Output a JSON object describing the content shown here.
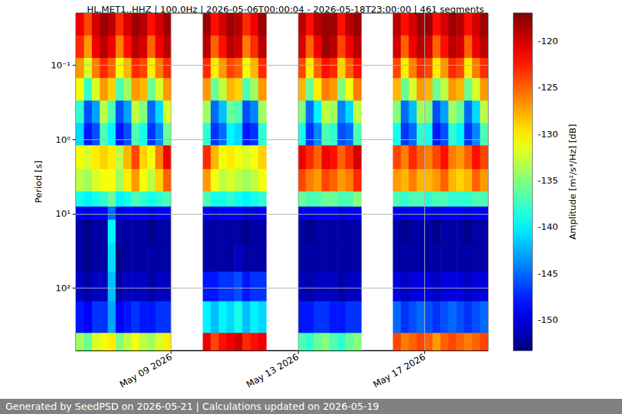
{
  "chart_data": {
    "type": "heatmap",
    "title": "HL.MET1..HHZ | 100.0Hz | 2026-05-06T00:00:04 - 2026-05-18T23:00:00 | 461 segments",
    "footer": "Generated by SeedPSD on 2026-05-21 | Calculations updated on 2026-05-19",
    "y_label": "Period [s]",
    "colorbar_label": "Amplitude [m²/s⁴/Hz] [dB]",
    "log": "y",
    "grid": true,
    "xlim": [
      "2026-05-06",
      "2026-05-19"
    ],
    "xticks": [
      {
        "value": "2026-05-09",
        "label": "May 09 2026"
      },
      {
        "value": "2026-05-13",
        "label": "May 13 2026"
      },
      {
        "value": "2026-05-17",
        "label": "May 17 2026"
      }
    ],
    "ylim": [
      0.02,
      690
    ],
    "yticks": [
      {
        "value": 0.1,
        "label": "10⁻¹"
      },
      {
        "value": 1,
        "label": "10⁰"
      },
      {
        "value": 10,
        "label": "10¹"
      },
      {
        "value": 100,
        "label": "10²"
      }
    ],
    "period_bins": [
      0.02,
      0.04,
      0.08,
      0.15,
      0.3,
      0.6,
      1.2,
      2.5,
      5,
      8,
      12,
      25,
      60,
      150,
      400,
      690
    ],
    "color_range": [
      -153.3,
      -117
    ],
    "color_ticks": [
      -150,
      -145,
      -140,
      -135,
      -130,
      -125,
      -120
    ],
    "segments": [
      {
        "start": "2026-05-06",
        "end": "2026-05-09",
        "cells": [
          [
            -121,
            -123,
            -127,
            -131,
            -138,
            -141,
            -131,
            -133,
            -139,
            -149,
            -152,
            -152,
            -151,
            -148,
            -134
          ],
          [
            -124,
            -127,
            -132,
            -138,
            -146,
            -148,
            -132,
            -134,
            -140,
            -150,
            -153,
            -153,
            -152,
            -149,
            -136
          ],
          [
            -120,
            -121,
            -126,
            -132,
            -143,
            -146,
            -130,
            -132,
            -139,
            -149,
            -152,
            -152,
            -151,
            -147,
            -132
          ],
          [
            -118,
            -119,
            -123,
            -127,
            -133,
            -137,
            -129,
            -131,
            -138,
            -149,
            -152,
            -152,
            -151,
            -147,
            -131
          ],
          [
            -119,
            -121,
            -125,
            -129,
            -137,
            -140,
            -130,
            -131,
            -136,
            -145,
            -140,
            -141,
            -142,
            -143,
            -130
          ],
          [
            -123,
            -126,
            -131,
            -137,
            -146,
            -148,
            -133,
            -134,
            -140,
            -150,
            -152,
            -153,
            -152,
            -149,
            -135
          ],
          [
            -120,
            -122,
            -128,
            -134,
            -143,
            -146,
            -128,
            -130,
            -139,
            -149,
            -152,
            -152,
            -151,
            -148,
            -133
          ],
          [
            -118,
            -119,
            -123,
            -127,
            -133,
            -137,
            -124,
            -127,
            -137,
            -149,
            -152,
            -152,
            -151,
            -147,
            -131
          ],
          [
            -119,
            -120,
            -124,
            -128,
            -135,
            -139,
            -129,
            -131,
            -138,
            -149,
            -152,
            -152,
            -151,
            -148,
            -133
          ],
          [
            -122,
            -125,
            -130,
            -136,
            -145,
            -147,
            -131,
            -133,
            -139,
            -150,
            -153,
            -152,
            -152,
            -148,
            -134
          ],
          [
            -120,
            -121,
            -126,
            -132,
            -141,
            -144,
            -126,
            -129,
            -138,
            -149,
            -152,
            -152,
            -151,
            -147,
            -132
          ],
          [
            -118,
            -119,
            -123,
            -127,
            -132,
            -136,
            -121,
            -125,
            -137,
            -149,
            -152,
            -152,
            -151,
            -147,
            -130
          ]
        ]
      },
      {
        "start": "2026-05-10",
        "end": "2026-05-12",
        "cells": [
          [
            -118,
            -119,
            -123,
            -127,
            -134,
            -138,
            -123,
            -127,
            -137,
            -149,
            -152,
            -152,
            -148,
            -140,
            -121
          ],
          [
            -122,
            -125,
            -130,
            -136,
            -145,
            -147,
            -128,
            -131,
            -139,
            -150,
            -152,
            -152,
            -148,
            -142,
            -124
          ],
          [
            -120,
            -122,
            -127,
            -133,
            -142,
            -145,
            -131,
            -133,
            -139,
            -149,
            -152,
            -152,
            -147,
            -140,
            -122
          ],
          [
            -118,
            -119,
            -124,
            -128,
            -136,
            -140,
            -130,
            -132,
            -138,
            -149,
            -152,
            -152,
            -147,
            -141,
            -121
          ],
          [
            -119,
            -120,
            -125,
            -129,
            -137,
            -141,
            -131,
            -133,
            -139,
            -149,
            -152,
            -151,
            -146,
            -139,
            -120
          ],
          [
            -123,
            -126,
            -131,
            -137,
            -146,
            -148,
            -132,
            -134,
            -140,
            -150,
            -153,
            -152,
            -148,
            -142,
            -123
          ],
          [
            -121,
            -123,
            -128,
            -134,
            -144,
            -147,
            -131,
            -133,
            -139,
            -150,
            -152,
            -152,
            -147,
            -140,
            -122
          ],
          [
            -118,
            -119,
            -123,
            -127,
            -134,
            -138,
            -129,
            -131,
            -138,
            -149,
            -152,
            -152,
            -147,
            -141,
            -121
          ]
        ]
      },
      {
        "start": "2026-05-13",
        "end": "2026-05-15",
        "cells": [
          [
            -119,
            -120,
            -124,
            -128,
            -135,
            -139,
            -121,
            -124,
            -136,
            -149,
            -152,
            -152,
            -151,
            -148,
            -137
          ],
          [
            -122,
            -125,
            -130,
            -136,
            -145,
            -147,
            -123,
            -126,
            -137,
            -150,
            -153,
            -152,
            -152,
            -148,
            -138
          ],
          [
            -119,
            -121,
            -125,
            -130,
            -140,
            -144,
            -125,
            -127,
            -137,
            -149,
            -152,
            -152,
            -151,
            -147,
            -136
          ],
          [
            -118,
            -118,
            -122,
            -126,
            -133,
            -137,
            -121,
            -124,
            -136,
            -149,
            -152,
            -152,
            -151,
            -147,
            -135
          ],
          [
            -118,
            -119,
            -123,
            -127,
            -134,
            -138,
            -122,
            -125,
            -136,
            -149,
            -152,
            -152,
            -151,
            -148,
            -137
          ],
          [
            -122,
            -124,
            -129,
            -135,
            -144,
            -146,
            -125,
            -127,
            -137,
            -150,
            -152,
            -152,
            -152,
            -148,
            -138
          ],
          [
            -119,
            -121,
            -125,
            -131,
            -141,
            -145,
            -123,
            -126,
            -137,
            -149,
            -152,
            -152,
            -151,
            -147,
            -136
          ],
          [
            -118,
            -119,
            -122,
            -126,
            -133,
            -137,
            -120,
            -123,
            -135,
            -149,
            -152,
            -152,
            -151,
            -147,
            -135
          ]
        ]
      },
      {
        "start": "2026-05-16",
        "end": "2026-05-19",
        "cells": [
          [
            -119,
            -120,
            -124,
            -128,
            -135,
            -139,
            -124,
            -127,
            -137,
            -149,
            -152,
            -152,
            -150,
            -145,
            -124
          ],
          [
            -122,
            -125,
            -130,
            -136,
            -145,
            -147,
            -126,
            -128,
            -138,
            -150,
            -153,
            -152,
            -151,
            -147,
            -126
          ],
          [
            -120,
            -121,
            -126,
            -132,
            -142,
            -145,
            -123,
            -126,
            -137,
            -149,
            -152,
            -152,
            -150,
            -146,
            -125
          ],
          [
            -118,
            -119,
            -123,
            -127,
            -134,
            -138,
            -125,
            -128,
            -137,
            -149,
            -152,
            -152,
            -150,
            -145,
            -124
          ],
          [
            -118,
            -120,
            -124,
            -128,
            -135,
            -139,
            -126,
            -128,
            -138,
            -149,
            -152,
            -152,
            -150,
            -146,
            -125
          ],
          [
            -122,
            -125,
            -130,
            -136,
            -146,
            -148,
            -124,
            -127,
            -137,
            -150,
            -153,
            -152,
            -151,
            -147,
            -127
          ],
          [
            -120,
            -122,
            -127,
            -133,
            -143,
            -146,
            -122,
            -125,
            -137,
            -149,
            -152,
            -152,
            -150,
            -146,
            -125
          ],
          [
            -118,
            -119,
            -123,
            -127,
            -134,
            -138,
            -126,
            -128,
            -138,
            -149,
            -152,
            -152,
            -150,
            -145,
            -124
          ],
          [
            -119,
            -120,
            -124,
            -128,
            -136,
            -140,
            -127,
            -129,
            -138,
            -149,
            -152,
            -152,
            -150,
            -146,
            -125
          ],
          [
            -122,
            -125,
            -130,
            -136,
            -145,
            -147,
            -125,
            -128,
            -138,
            -150,
            -153,
            -152,
            -151,
            -147,
            -126
          ],
          [
            -120,
            -121,
            -126,
            -132,
            -141,
            -144,
            -122,
            -125,
            -137,
            -149,
            -152,
            -152,
            -150,
            -146,
            -125
          ],
          [
            -118,
            -119,
            -123,
            -127,
            -133,
            -137,
            -124,
            -127,
            -137,
            -149,
            -152,
            -152,
            -150,
            -145,
            -124
          ]
        ]
      }
    ]
  }
}
